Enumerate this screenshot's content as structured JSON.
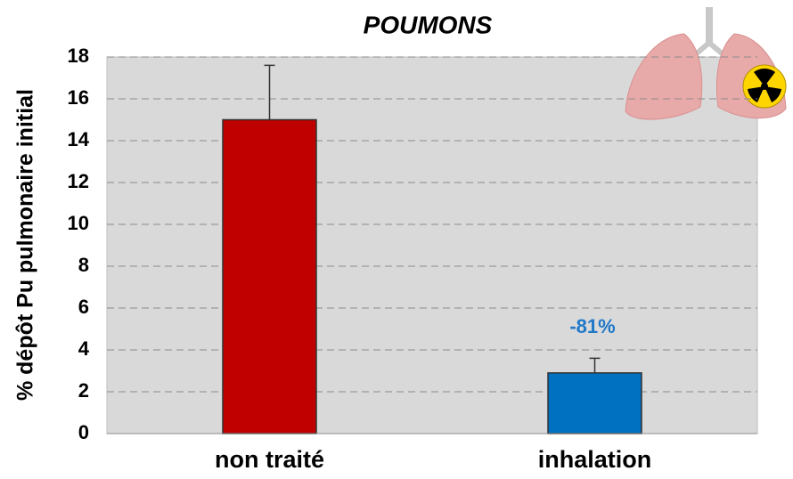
{
  "chart_data": {
    "type": "bar",
    "title": "POUMONS",
    "y_label": "% dépôt Pu pulmonaire initial",
    "categories": [
      "non traité",
      "inhalation"
    ],
    "values": [
      15.0,
      2.9
    ],
    "errors": [
      2.6,
      0.7
    ],
    "colors": [
      "#c00000",
      "#0070c0"
    ],
    "annotation": "-81%",
    "annotation_color": "#1f78c8",
    "ylim": [
      0,
      18
    ],
    "yticks": [
      0,
      2,
      4,
      6,
      8,
      10,
      12,
      14,
      16,
      18
    ],
    "grid": true
  }
}
